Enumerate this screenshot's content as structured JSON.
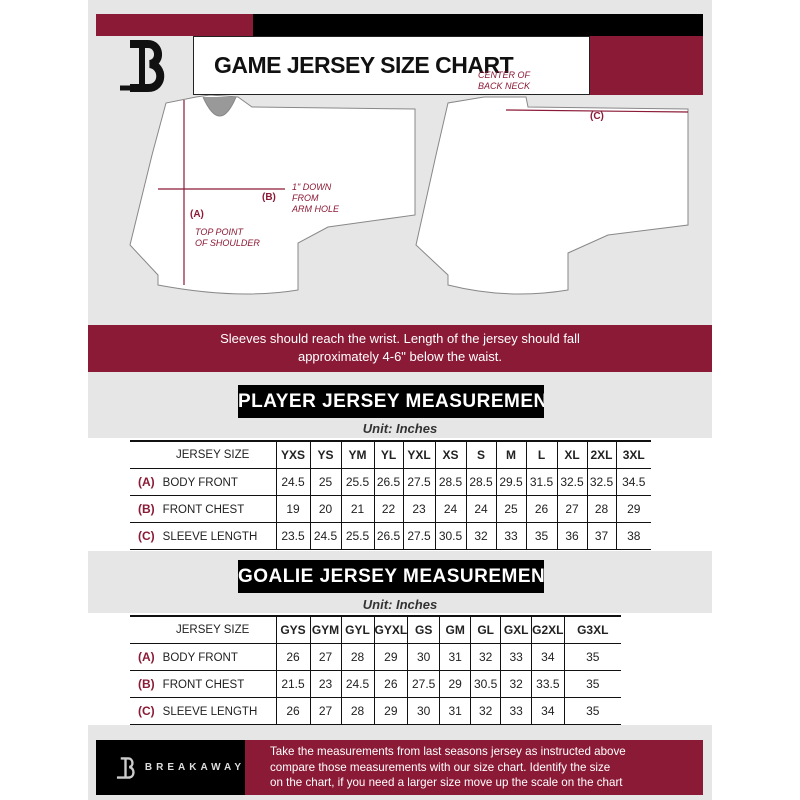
{
  "header": {
    "title": "GAME JERSEY SIZE CHART",
    "logo_letter": "B"
  },
  "diagram": {
    "label_a": "(A)",
    "label_b": "(B)",
    "label_c": "(C)",
    "top_point": [
      "TOP POINT",
      "OF SHOULDER"
    ],
    "one_inch": [
      "1\" DOWN",
      "FROM",
      "ARM HOLE"
    ],
    "center_back": [
      "CENTER OF",
      "BACK NECK"
    ]
  },
  "banner": [
    "Sleeves should reach the wrist. Length of the jersey should fall",
    "approximately 4-6\" below the waist."
  ],
  "player": {
    "title": "PLAYER JERSEY MEASUREMENTS",
    "unit": "Unit: Inches",
    "header": "JERSEY SIZE",
    "sizes": [
      "YXS",
      "YS",
      "YM",
      "YL",
      "YXL",
      "XS",
      "S",
      "M",
      "L",
      "XL",
      "2XL",
      "3XL"
    ],
    "rows": [
      {
        "letter": "(A)",
        "label": "BODY FRONT",
        "values": [
          "24.5",
          "25",
          "25.5",
          "26.5",
          "27.5",
          "28.5",
          "28.5",
          "29.5",
          "31.5",
          "32.5",
          "32.5",
          "34.5"
        ]
      },
      {
        "letter": "(B)",
        "label": "FRONT CHEST",
        "values": [
          "19",
          "20",
          "21",
          "22",
          "23",
          "24",
          "24",
          "25",
          "26",
          "27",
          "28",
          "29"
        ]
      },
      {
        "letter": "(C)",
        "label": "SLEEVE LENGTH",
        "values": [
          "23.5",
          "24.5",
          "25.5",
          "26.5",
          "27.5",
          "30.5",
          "32",
          "33",
          "35",
          "36",
          "37",
          "38"
        ]
      }
    ]
  },
  "goalie": {
    "title": "GOALIE JERSEY MEASUREMENTS",
    "unit": "Unit: Inches",
    "header": "JERSEY SIZE",
    "sizes": [
      "GYS",
      "GYM",
      "GYL",
      "GYXL",
      "GS",
      "GM",
      "GL",
      "GXL",
      "G2XL",
      "G3XL"
    ],
    "rows": [
      {
        "letter": "(A)",
        "label": "BODY FRONT",
        "values": [
          "26",
          "27",
          "28",
          "29",
          "30",
          "31",
          "32",
          "33",
          "34",
          "35"
        ]
      },
      {
        "letter": "(B)",
        "label": "FRONT CHEST",
        "values": [
          "21.5",
          "23",
          "24.5",
          "26",
          "27.5",
          "29",
          "30.5",
          "32",
          "33.5",
          "35"
        ]
      },
      {
        "letter": "(C)",
        "label": "SLEEVE LENGTH",
        "values": [
          "26",
          "27",
          "28",
          "29",
          "30",
          "31",
          "32",
          "33",
          "34",
          "35"
        ]
      }
    ]
  },
  "footer": {
    "brand": "BREAKAWAY",
    "text": [
      "Take the measurements from last seasons jersey as instructed above",
      "compare those measurements  with our size chart. Identify the size",
      "on the chart, if you need a larger size move up the scale on the chart"
    ]
  },
  "colors": {
    "maroon": "#8b1a36",
    "black": "#000000",
    "panel": "#e6e6e6"
  }
}
